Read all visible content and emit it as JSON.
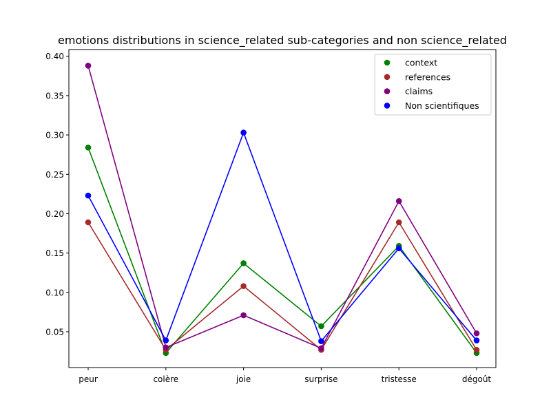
{
  "chart_data": {
    "type": "line",
    "title": "emotions distributions in science_related sub-categories and non science_related",
    "xlabel": "",
    "ylabel": "",
    "categories": [
      "peur",
      "colère",
      "joie",
      "surprise",
      "tristesse",
      "dégoût"
    ],
    "y_ticks": [
      "0.05",
      "0.10",
      "0.15",
      "0.20",
      "0.25",
      "0.30",
      "0.35",
      "0.40"
    ],
    "ylim": [
      0.0045,
      0.4085
    ],
    "grid": false,
    "legend_position": "top-right",
    "series": [
      {
        "name": "context",
        "color": "#008000",
        "values": [
          0.284,
          0.023,
          0.137,
          0.057,
          0.159,
          0.023
        ]
      },
      {
        "name": "references",
        "color": "#a52a2a",
        "values": [
          0.189,
          0.027,
          0.108,
          0.027,
          0.189,
          0.027
        ]
      },
      {
        "name": "claims",
        "color": "#800080",
        "values": [
          0.388,
          0.03,
          0.071,
          0.029,
          0.216,
          0.048
        ]
      },
      {
        "name": "Non scientifiques",
        "color": "#0000ff",
        "values": [
          0.223,
          0.039,
          0.303,
          0.038,
          0.156,
          0.039
        ]
      }
    ]
  }
}
